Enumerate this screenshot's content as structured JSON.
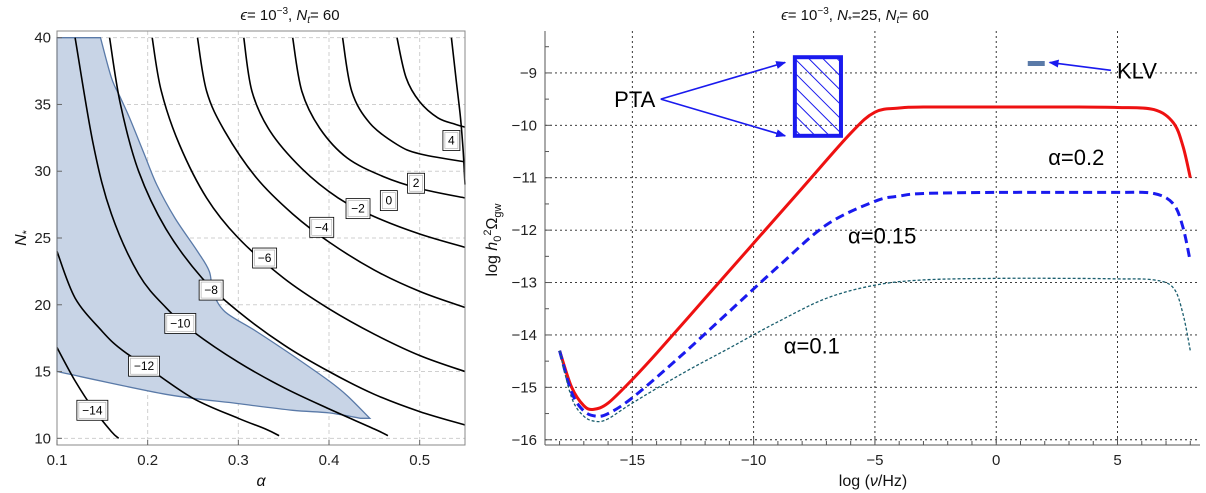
{
  "chart_data": [
    {
      "type": "contour",
      "title_parts": [
        "ϵ",
        "= 10",
        "−3",
        ", ",
        "N",
        "t",
        "= 60"
      ],
      "xlabel": "α",
      "ylabel_parts": [
        "N",
        "*"
      ],
      "xlim": [
        0.1,
        0.55
      ],
      "ylim": [
        9.5,
        40.5
      ],
      "xticks": [
        0.1,
        0.2,
        0.3,
        0.4,
        0.5
      ],
      "xtick_labels": [
        "0.1",
        "0.2",
        "0.3",
        "0.4",
        "0.5"
      ],
      "yticks": [
        10,
        15,
        20,
        25,
        30,
        35,
        40
      ],
      "ytick_labels": [
        "10",
        "15",
        "20",
        "25",
        "30",
        "35",
        "40"
      ],
      "grid": true,
      "region_color": "#c8d4e6",
      "region_edge": "#5a7aa8",
      "region": {
        "left_edge": [
          [
            0.1,
            40
          ],
          [
            0.1,
            15
          ]
        ],
        "bottom_edge": [
          [
            0.1,
            15
          ],
          [
            0.22,
            13.3
          ],
          [
            0.3,
            12.6
          ],
          [
            0.36,
            12.1
          ],
          [
            0.4,
            11.9
          ],
          [
            0.435,
            11.5
          ]
        ],
        "top_edge": [
          [
            0.1,
            40
          ],
          [
            0.148,
            40
          ]
        ],
        "right_edge": [
          [
            0.148,
            40
          ],
          [
            0.16,
            37
          ],
          [
            0.17,
            35.5
          ],
          [
            0.18,
            34
          ],
          [
            0.195,
            31.5
          ],
          [
            0.21,
            29
          ],
          [
            0.23,
            26.5
          ],
          [
            0.255,
            24
          ],
          [
            0.268,
            22.5
          ],
          [
            0.272,
            21
          ],
          [
            0.285,
            19.5
          ],
          [
            0.32,
            18
          ],
          [
            0.36,
            16.2
          ],
          [
            0.4,
            14.3
          ],
          [
            0.42,
            13.2
          ],
          [
            0.445,
            11.5
          ]
        ]
      },
      "contours": [
        {
          "label": "−14",
          "label_at": [
            0.139,
            12.1
          ],
          "points": [
            [
              0.1,
              16.8
            ],
            [
              0.12,
              14.3
            ],
            [
              0.14,
              12.2
            ],
            [
              0.16,
              10.5
            ],
            [
              0.168,
              10.0
            ]
          ]
        },
        {
          "label": "−12",
          "label_at": [
            0.196,
            15.4
          ],
          "points": [
            [
              0.1,
              24.0
            ],
            [
              0.12,
              20.5
            ],
            [
              0.15,
              18.0
            ],
            [
              0.17,
              16.7
            ],
            [
              0.2,
              15.3
            ],
            [
              0.25,
              13.0
            ],
            [
              0.3,
              11.5
            ],
            [
              0.33,
              10.7
            ],
            [
              0.345,
              10.2
            ]
          ]
        },
        {
          "label": "−10",
          "label_at": [
            0.236,
            18.6
          ],
          "points": [
            [
              0.12,
              40.0
            ],
            [
              0.14,
              32.0
            ],
            [
              0.16,
              26.8
            ],
            [
              0.19,
              22.3
            ],
            [
              0.22,
              19.8
            ],
            [
              0.25,
              18.0
            ],
            [
              0.3,
              15.7
            ],
            [
              0.35,
              13.8
            ],
            [
              0.4,
              12.2
            ],
            [
              0.45,
              10.7
            ],
            [
              0.465,
              10.2
            ]
          ]
        },
        {
          "label": "−8",
          "label_at": [
            0.27,
            21.1
          ],
          "points": [
            [
              0.158,
              40.0
            ],
            [
              0.17,
              35.0
            ],
            [
              0.19,
              30.0
            ],
            [
              0.22,
              25.7
            ],
            [
              0.26,
              22.0
            ],
            [
              0.3,
              19.5
            ],
            [
              0.35,
              17.0
            ],
            [
              0.4,
              15.0
            ],
            [
              0.45,
              13.3
            ],
            [
              0.5,
              12.0
            ],
            [
              0.55,
              11.0
            ]
          ]
        },
        {
          "label": "−6",
          "label_at": [
            0.329,
            23.5
          ],
          "points": [
            [
              0.205,
              40.0
            ],
            [
              0.215,
              36.0
            ],
            [
              0.235,
              32.0
            ],
            [
              0.265,
              28.0
            ],
            [
              0.3,
              25.0
            ],
            [
              0.35,
              22.0
            ],
            [
              0.4,
              19.7
            ],
            [
              0.45,
              17.8
            ],
            [
              0.5,
              16.2
            ],
            [
              0.55,
              15.0
            ]
          ]
        },
        {
          "label": "−4",
          "label_at": [
            0.392,
            25.8
          ],
          "points": [
            [
              0.255,
              40.0
            ],
            [
              0.265,
              36.0
            ],
            [
              0.285,
              33.0
            ],
            [
              0.32,
              29.5
            ],
            [
              0.36,
              26.8
            ],
            [
              0.4,
              24.7
            ],
            [
              0.45,
              22.6
            ],
            [
              0.5,
              21.0
            ],
            [
              0.55,
              19.8
            ]
          ]
        },
        {
          "label": "−2",
          "label_at": [
            0.432,
            27.2
          ],
          "points": [
            [
              0.306,
              40.0
            ],
            [
              0.315,
              36.0
            ],
            [
              0.335,
              33.0
            ],
            [
              0.37,
              30.2
            ],
            [
              0.41,
              28.0
            ],
            [
              0.45,
              26.6
            ],
            [
              0.5,
              25.3
            ],
            [
              0.55,
              24.3
            ]
          ]
        },
        {
          "label": "0",
          "label_at": [
            0.466,
            27.8
          ],
          "points": [
            [
              0.36,
              40.0
            ],
            [
              0.37,
              36.0
            ],
            [
              0.39,
              33.2
            ],
            [
              0.42,
              31.0
            ],
            [
              0.46,
              29.6
            ],
            [
              0.5,
              28.7
            ],
            [
              0.55,
              28.0
            ]
          ]
        },
        {
          "label": "2",
          "label_at": [
            0.496,
            29.1
          ],
          "points": [
            [
              0.415,
              40.0
            ],
            [
              0.425,
              36.0
            ],
            [
              0.445,
              33.6
            ],
            [
              0.475,
              32.0
            ],
            [
              0.5,
              31.3
            ],
            [
              0.55,
              30.7
            ]
          ]
        },
        {
          "label": "4",
          "label_at": [
            0.535,
            32.3
          ],
          "points": [
            [
              0.475,
              40.0
            ],
            [
              0.485,
              37.0
            ],
            [
              0.5,
              35.2
            ],
            [
              0.52,
              34.0
            ],
            [
              0.54,
              33.5
            ],
            [
              0.55,
              33.3
            ]
          ]
        },
        {
          "label": "",
          "points": [
            [
              0.535,
              40.0
            ],
            [
              0.54,
              37.0
            ],
            [
              0.545,
              34.0
            ],
            [
              0.548,
              31.5
            ],
            [
              0.55,
              29.0
            ]
          ]
        }
      ]
    },
    {
      "type": "line",
      "title_parts": [
        "ϵ",
        "= 10",
        "−3",
        ", ",
        "N",
        "*",
        "=25, ",
        "N",
        "t",
        "= 60"
      ],
      "xlabel_parts": [
        "log (",
        "ν",
        "/Hz)"
      ],
      "ylabel_parts": [
        "log ",
        "h",
        "0",
        "2",
        "Ω",
        "gw"
      ],
      "xlim": [
        -18.6,
        8.4
      ],
      "ylim": [
        -16.1,
        -8.2
      ],
      "xticks": [
        -15,
        -10,
        -5,
        0,
        5
      ],
      "xtick_labels": [
        "−15",
        "−10",
        "−5",
        "0",
        "5"
      ],
      "yticks": [
        -16,
        -15,
        -14,
        -13,
        -12,
        -11,
        -10,
        -9
      ],
      "ytick_labels": [
        "−16",
        "−15",
        "−14",
        "−13",
        "−12",
        "−11",
        "−10",
        "−9"
      ],
      "grid": true,
      "series": [
        {
          "name": "α=0.2",
          "color": "#ee1111",
          "style": "solid",
          "x": [
            -18.0,
            -17.5,
            -17.0,
            -16.6,
            -16.0,
            -15.0,
            -14.0,
            -12.0,
            -10.0,
            -8.0,
            -6.0,
            -5.0,
            -4.0,
            -3.0,
            0.0,
            3.0,
            5.0,
            6.5,
            7.3,
            7.7,
            8.0
          ],
          "y": [
            -14.3,
            -15.0,
            -15.35,
            -15.42,
            -15.3,
            -14.85,
            -14.35,
            -13.3,
            -12.25,
            -11.2,
            -10.15,
            -9.75,
            -9.67,
            -9.65,
            -9.65,
            -9.65,
            -9.66,
            -9.7,
            -9.95,
            -10.4,
            -11.0
          ]
        },
        {
          "name": "α=0.15",
          "color": "#1a1aee",
          "style": "dashed",
          "x": [
            -18.0,
            -17.5,
            -17.0,
            -16.5,
            -16.0,
            -15.0,
            -13.0,
            -11.0,
            -9.0,
            -7.0,
            -5.0,
            -4.0,
            -3.0,
            0.0,
            3.0,
            5.0,
            6.5,
            7.3,
            7.7,
            8.0
          ],
          "y": [
            -14.3,
            -15.1,
            -15.45,
            -15.55,
            -15.5,
            -15.2,
            -14.4,
            -13.55,
            -12.7,
            -11.9,
            -11.45,
            -11.35,
            -11.3,
            -11.28,
            -11.28,
            -11.28,
            -11.3,
            -11.5,
            -11.95,
            -12.6
          ]
        },
        {
          "name": "α=0.1",
          "color": "#1a5e6e",
          "style": "dotted",
          "x": [
            -18.0,
            -17.5,
            -17.0,
            -16.5,
            -16.0,
            -15.0,
            -13.0,
            -11.0,
            -9.0,
            -7.0,
            -5.0,
            -3.0,
            0.0,
            3.0,
            5.0,
            6.5,
            7.3,
            7.7,
            8.0
          ],
          "y": [
            -14.3,
            -15.2,
            -15.55,
            -15.65,
            -15.6,
            -15.3,
            -14.75,
            -14.25,
            -13.75,
            -13.3,
            -13.05,
            -12.95,
            -12.92,
            -12.92,
            -12.93,
            -12.95,
            -13.1,
            -13.6,
            -14.3
          ]
        }
      ],
      "series_labels": [
        {
          "text": "α=0.2",
          "at": [
            3.3,
            -10.6
          ]
        },
        {
          "text": "α=0.15",
          "at": [
            -4.7,
            -12.1
          ]
        },
        {
          "text": "α=0.1",
          "at": [
            -7.6,
            -14.2
          ]
        }
      ],
      "annotations": [
        {
          "text": "PTA",
          "at": [
            -14.9,
            -9.5
          ],
          "arrow_targets": [
            [
              -8.7,
              -8.8
            ],
            [
              -8.7,
              -10.2
            ]
          ]
        },
        {
          "text": "KLV",
          "at": [
            5.8,
            -8.95
          ],
          "arrow_target": [
            2.2,
            -8.8
          ]
        }
      ],
      "pta_box": {
        "x": [
          -8.3,
          -6.4
        ],
        "y": [
          -10.2,
          -8.7
        ],
        "color": "#1a1aee"
      },
      "klv_marker": {
        "x": [
          1.3,
          2.0
        ],
        "y": -8.82,
        "color": "#5a7aa8"
      }
    }
  ]
}
